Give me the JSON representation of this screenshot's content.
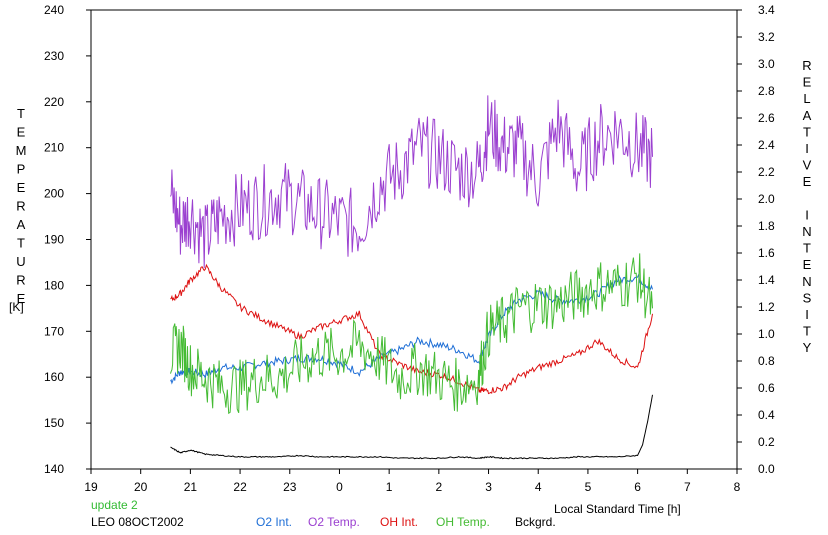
{
  "chart_data": {
    "type": "line",
    "xlabel": "Local Standard Time [h]",
    "ylabel_left": "TEMPERATURE",
    "ylabel_left_unit": "[K]",
    "ylabel_right": "RELATIVE INTENSITY",
    "x_ticks": [
      "19",
      "20",
      "21",
      "22",
      "23",
      "0",
      "1",
      "2",
      "3",
      "4",
      "5",
      "6",
      "7",
      "8"
    ],
    "xlim": [
      19,
      32
    ],
    "ylim_left": [
      140,
      240
    ],
    "ylim_right": [
      0,
      3.4
    ],
    "y_left_ticks": [
      140,
      150,
      160,
      170,
      180,
      190,
      200,
      210,
      220,
      230,
      240
    ],
    "y_right_ticks": [
      "0.0",
      "0.2",
      "0.4",
      "0.6",
      "0.8",
      "1.0",
      "1.2",
      "1.4",
      "1.6",
      "1.8",
      "2.0",
      "2.2",
      "2.4",
      "2.6",
      "2.8",
      "3.0",
      "3.2",
      "3.4"
    ],
    "update_label": "update 2",
    "station_label": "LEO 08OCT2002",
    "grid": false,
    "legend_position": "bottom",
    "series": [
      {
        "name": "O2 Int.",
        "axis": "right",
        "color": "#1f6fd6",
        "x": [
          20.6,
          20.8,
          21.0,
          21.3,
          21.6,
          22.0,
          22.4,
          22.8,
          23.2,
          23.6,
          24.0,
          24.4,
          24.8,
          25.2,
          25.6,
          26.0,
          26.4,
          26.8,
          27.0,
          27.3,
          27.6,
          28.0,
          28.4,
          28.8,
          29.2,
          29.6,
          30.0,
          30.3
        ],
        "y": [
          0.65,
          0.72,
          0.72,
          0.7,
          0.75,
          0.75,
          0.78,
          0.8,
          0.82,
          0.82,
          0.78,
          0.72,
          0.82,
          0.88,
          0.95,
          0.92,
          0.88,
          0.8,
          0.98,
          1.15,
          1.25,
          1.3,
          1.25,
          1.25,
          1.3,
          1.4,
          1.42,
          1.33
        ]
      },
      {
        "name": "O2 Temp.",
        "axis": "left",
        "color": "#9b40d0",
        "x": [
          20.6,
          20.8,
          21.0,
          21.3,
          21.6,
          22.0,
          22.4,
          22.8,
          23.2,
          23.6,
          24.0,
          24.4,
          24.8,
          25.2,
          25.6,
          26.0,
          26.4,
          26.8,
          27.0,
          27.3,
          27.6,
          28.0,
          28.4,
          28.8,
          29.2,
          29.6,
          30.0,
          30.3
        ],
        "y": [
          200,
          193,
          196,
          190,
          195,
          197,
          198,
          200,
          198,
          196,
          194,
          193,
          202,
          205,
          210,
          208,
          205,
          205,
          215,
          210,
          210,
          203,
          215,
          205,
          212,
          214,
          210,
          208
        ]
      },
      {
        "name": "OH Int.",
        "axis": "right",
        "color": "#dd1111",
        "x": [
          20.6,
          20.8,
          21.0,
          21.3,
          21.6,
          22.0,
          22.4,
          22.8,
          23.2,
          23.6,
          24.0,
          24.4,
          24.8,
          25.2,
          25.6,
          26.0,
          26.4,
          26.8,
          27.0,
          27.3,
          27.6,
          28.0,
          28.4,
          28.8,
          29.2,
          29.6,
          30.0,
          30.3
        ],
        "y": [
          1.25,
          1.3,
          1.4,
          1.5,
          1.35,
          1.2,
          1.12,
          1.05,
          0.98,
          1.05,
          1.1,
          1.15,
          0.85,
          0.78,
          0.72,
          0.7,
          0.65,
          0.58,
          0.58,
          0.6,
          0.68,
          0.75,
          0.8,
          0.85,
          0.95,
          0.82,
          0.75,
          1.15
        ]
      },
      {
        "name": "OH Temp.",
        "axis": "left",
        "color": "#44bb33",
        "x": [
          20.6,
          20.8,
          21.0,
          21.3,
          21.6,
          22.0,
          22.4,
          22.8,
          23.2,
          23.6,
          24.0,
          24.4,
          24.8,
          25.2,
          25.6,
          26.0,
          26.4,
          26.8,
          27.0,
          27.3,
          27.6,
          28.0,
          28.4,
          28.8,
          29.2,
          29.6,
          30.0,
          30.3
        ],
        "y": [
          165,
          167,
          162,
          160,
          158,
          158,
          160,
          160,
          163,
          165,
          165,
          167,
          164,
          160,
          162,
          160,
          158,
          160,
          170,
          172,
          175,
          176,
          176,
          178,
          180,
          180,
          182,
          175
        ]
      },
      {
        "name": "Bckgrd.",
        "axis": "right",
        "color": "#000000",
        "x": [
          20.6,
          20.8,
          21.0,
          21.3,
          21.6,
          22.0,
          22.4,
          22.8,
          23.2,
          23.6,
          24.0,
          24.4,
          24.8,
          25.2,
          25.6,
          26.0,
          26.4,
          26.8,
          27.0,
          27.3,
          27.6,
          28.0,
          28.4,
          28.8,
          29.2,
          29.6,
          30.0,
          30.1,
          30.2,
          30.3
        ],
        "y": [
          0.16,
          0.12,
          0.14,
          0.11,
          0.1,
          0.09,
          0.09,
          0.09,
          0.1,
          0.09,
          0.09,
          0.09,
          0.09,
          0.08,
          0.08,
          0.08,
          0.09,
          0.08,
          0.09,
          0.08,
          0.08,
          0.08,
          0.08,
          0.09,
          0.09,
          0.09,
          0.1,
          0.18,
          0.35,
          0.55
        ]
      }
    ]
  }
}
